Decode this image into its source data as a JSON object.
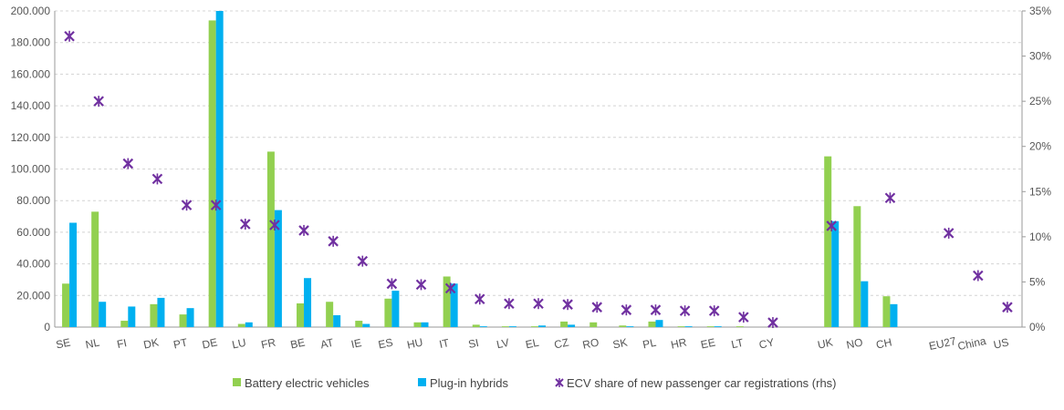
{
  "colors": {
    "bev": "#92d050",
    "phev": "#00b0f0",
    "share": "#7030a0"
  },
  "chart_data": {
    "type": "bar",
    "categories": [
      "SE",
      "NL",
      "FI",
      "DK",
      "PT",
      "DE",
      "LU",
      "FR",
      "BE",
      "AT",
      "IE",
      "ES",
      "HU",
      "IT",
      "SI",
      "LV",
      "EL",
      "CZ",
      "RO",
      "SK",
      "PL",
      "HR",
      "EE",
      "LT",
      "CY",
      "",
      "UK",
      "NO",
      "CH",
      "",
      "EU27",
      "China",
      "US"
    ],
    "series": [
      {
        "name": "Battery electric vehicles",
        "axis": "left",
        "kind": "bar",
        "values": [
          27500,
          73000,
          4000,
          14500,
          8000,
          194000,
          2000,
          111000,
          15000,
          16000,
          4000,
          18000,
          3000,
          32000,
          1500,
          500,
          500,
          3500,
          3000,
          1000,
          3500,
          500,
          500,
          500,
          null,
          null,
          108000,
          76500,
          19500,
          null,
          null,
          null,
          null
        ]
      },
      {
        "name": "Plug-in hybrids",
        "axis": "left",
        "kind": "bar",
        "values": [
          66000,
          16000,
          13000,
          18500,
          12000,
          200000,
          3000,
          74000,
          31000,
          7500,
          2000,
          23000,
          3000,
          27500,
          500,
          500,
          1000,
          1500,
          null,
          500,
          4500,
          500,
          500,
          null,
          null,
          null,
          67000,
          29000,
          14500,
          null,
          null,
          null,
          null
        ]
      },
      {
        "name": "ECV share of new passenger car registrations (rhs)",
        "axis": "right",
        "kind": "marker",
        "values": [
          32.2,
          25.0,
          18.1,
          16.4,
          13.5,
          13.5,
          11.4,
          11.3,
          10.7,
          9.5,
          7.3,
          4.8,
          4.7,
          4.3,
          3.1,
          2.6,
          2.6,
          2.5,
          2.2,
          1.9,
          1.9,
          1.8,
          1.8,
          1.1,
          0.5,
          null,
          11.2,
          null,
          14.3,
          null,
          10.4,
          5.7,
          2.2
        ]
      }
    ],
    "y_left": {
      "min": 0,
      "max": 200000,
      "ticks": [
        "0",
        "20.000",
        "40.000",
        "60.000",
        "80.000",
        "100.000",
        "120.000",
        "140.000",
        "160.000",
        "180.000",
        "200.000"
      ]
    },
    "y_right": {
      "min": 0,
      "max": 35,
      "ticks": [
        "0%",
        "5%",
        "10%",
        "15%",
        "20%",
        "25%",
        "30%",
        "35%"
      ]
    },
    "legend": [
      "Battery electric vehicles",
      "Plug-in hybrids",
      "ECV share of new passenger car registrations (rhs)"
    ]
  }
}
